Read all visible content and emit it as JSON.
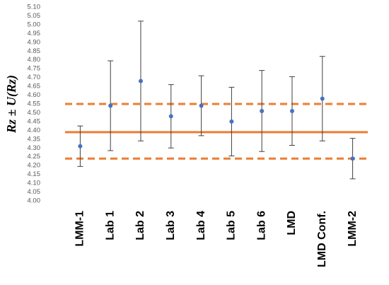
{
  "chart_data": {
    "type": "errorbar",
    "y_label": "Rz ± U(Rz)",
    "categories": [
      "LMM-1",
      "Lab 1",
      "Lab 2",
      "Lab 3",
      "Lab 4",
      "Lab 5",
      "Lab 6",
      "LMD",
      "LMD Conf.",
      "LMM-2"
    ],
    "values": [
      4.31,
      4.54,
      4.68,
      4.48,
      4.54,
      4.45,
      4.51,
      4.51,
      4.58,
      4.24
    ],
    "errors": [
      0.115,
      0.255,
      0.34,
      0.18,
      0.17,
      0.195,
      0.23,
      0.195,
      0.24,
      0.115
    ],
    "color": "#4472c4",
    "error_color": "#404040",
    "reference_lines": [
      {
        "value": 4.39,
        "style": "solid"
      },
      {
        "value": 4.55,
        "style": "dashed"
      },
      {
        "value": 4.24,
        "style": "dashed"
      }
    ],
    "reference_color": "#ed7d31",
    "ylim": [
      4.0,
      5.1
    ],
    "yticks": [
      {
        "value": 4.0,
        "label": "4.00"
      },
      4.05,
      {
        "value": 4.1,
        "label": "4.10"
      },
      4.15,
      {
        "value": 4.2,
        "label": "4.20"
      },
      4.25,
      {
        "value": 4.3,
        "label": "4.30"
      },
      4.35,
      {
        "value": 4.4,
        "label": "4.40"
      },
      4.45,
      {
        "value": 4.5,
        "label": "4.50"
      },
      4.55,
      {
        "value": 4.6,
        "label": "4.60"
      },
      4.65,
      {
        "value": 4.7,
        "label": "4.70"
      },
      4.75,
      {
        "value": 4.8,
        "label": "4.80"
      },
      4.85,
      {
        "value": 4.9,
        "label": "4.90"
      },
      4.95,
      {
        "value": 5.0,
        "label": "5.00"
      },
      5.05,
      {
        "value": 5.1,
        "label": "5.10"
      }
    ],
    "grid": false
  }
}
